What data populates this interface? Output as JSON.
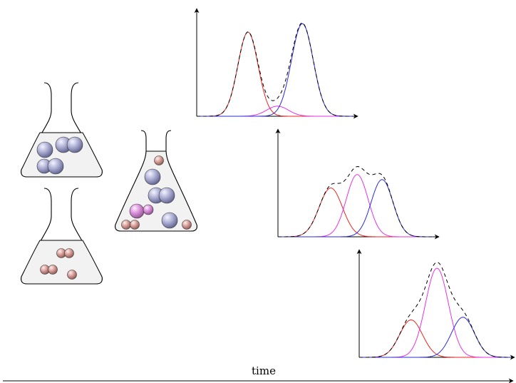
{
  "timeline": {
    "label": "time"
  },
  "colors": {
    "red_peak": "#e8251f",
    "magenta_peak": "#e632e6",
    "blue_peak": "#2b2bd8",
    "sum_curve": "#000000",
    "blue_particle": "#a9abd0",
    "red_particle": "#d99c98",
    "magenta_particle": "#d98ad9",
    "flask_fill": "#f2f2f2",
    "flask_stroke": "#000000"
  },
  "flasks": [
    {
      "id": "flask-reactant-a",
      "particles": "blue-spheres"
    },
    {
      "id": "flask-reactant-b",
      "particles": "red-dimers"
    },
    {
      "id": "flask-mixture",
      "particles": "mixed"
    }
  ],
  "chart_data": [
    {
      "type": "line",
      "stage": 1,
      "series": [
        {
          "color": "red",
          "mu": 3.3,
          "sigma": 0.65,
          "amp": 1.0
        },
        {
          "color": "magenta",
          "mu": 5.2,
          "sigma": 0.7,
          "amp": 0.12
        },
        {
          "color": "blue",
          "mu": 6.8,
          "sigma": 0.7,
          "amp": 1.1
        }
      ]
    },
    {
      "type": "line",
      "stage": 2,
      "series": [
        {
          "color": "red",
          "mu": 3.4,
          "sigma": 0.75,
          "amp": 0.58
        },
        {
          "color": "magenta",
          "mu": 5.1,
          "sigma": 0.7,
          "amp": 0.74
        },
        {
          "color": "blue",
          "mu": 6.7,
          "sigma": 0.7,
          "amp": 0.68
        }
      ]
    },
    {
      "type": "line",
      "stage": 3,
      "series": [
        {
          "color": "red",
          "mu": 3.4,
          "sigma": 0.75,
          "amp": 0.42
        },
        {
          "color": "magenta",
          "mu": 5.1,
          "sigma": 0.75,
          "amp": 1.0
        },
        {
          "color": "blue",
          "mu": 6.8,
          "sigma": 0.75,
          "amp": 0.45
        }
      ]
    }
  ]
}
